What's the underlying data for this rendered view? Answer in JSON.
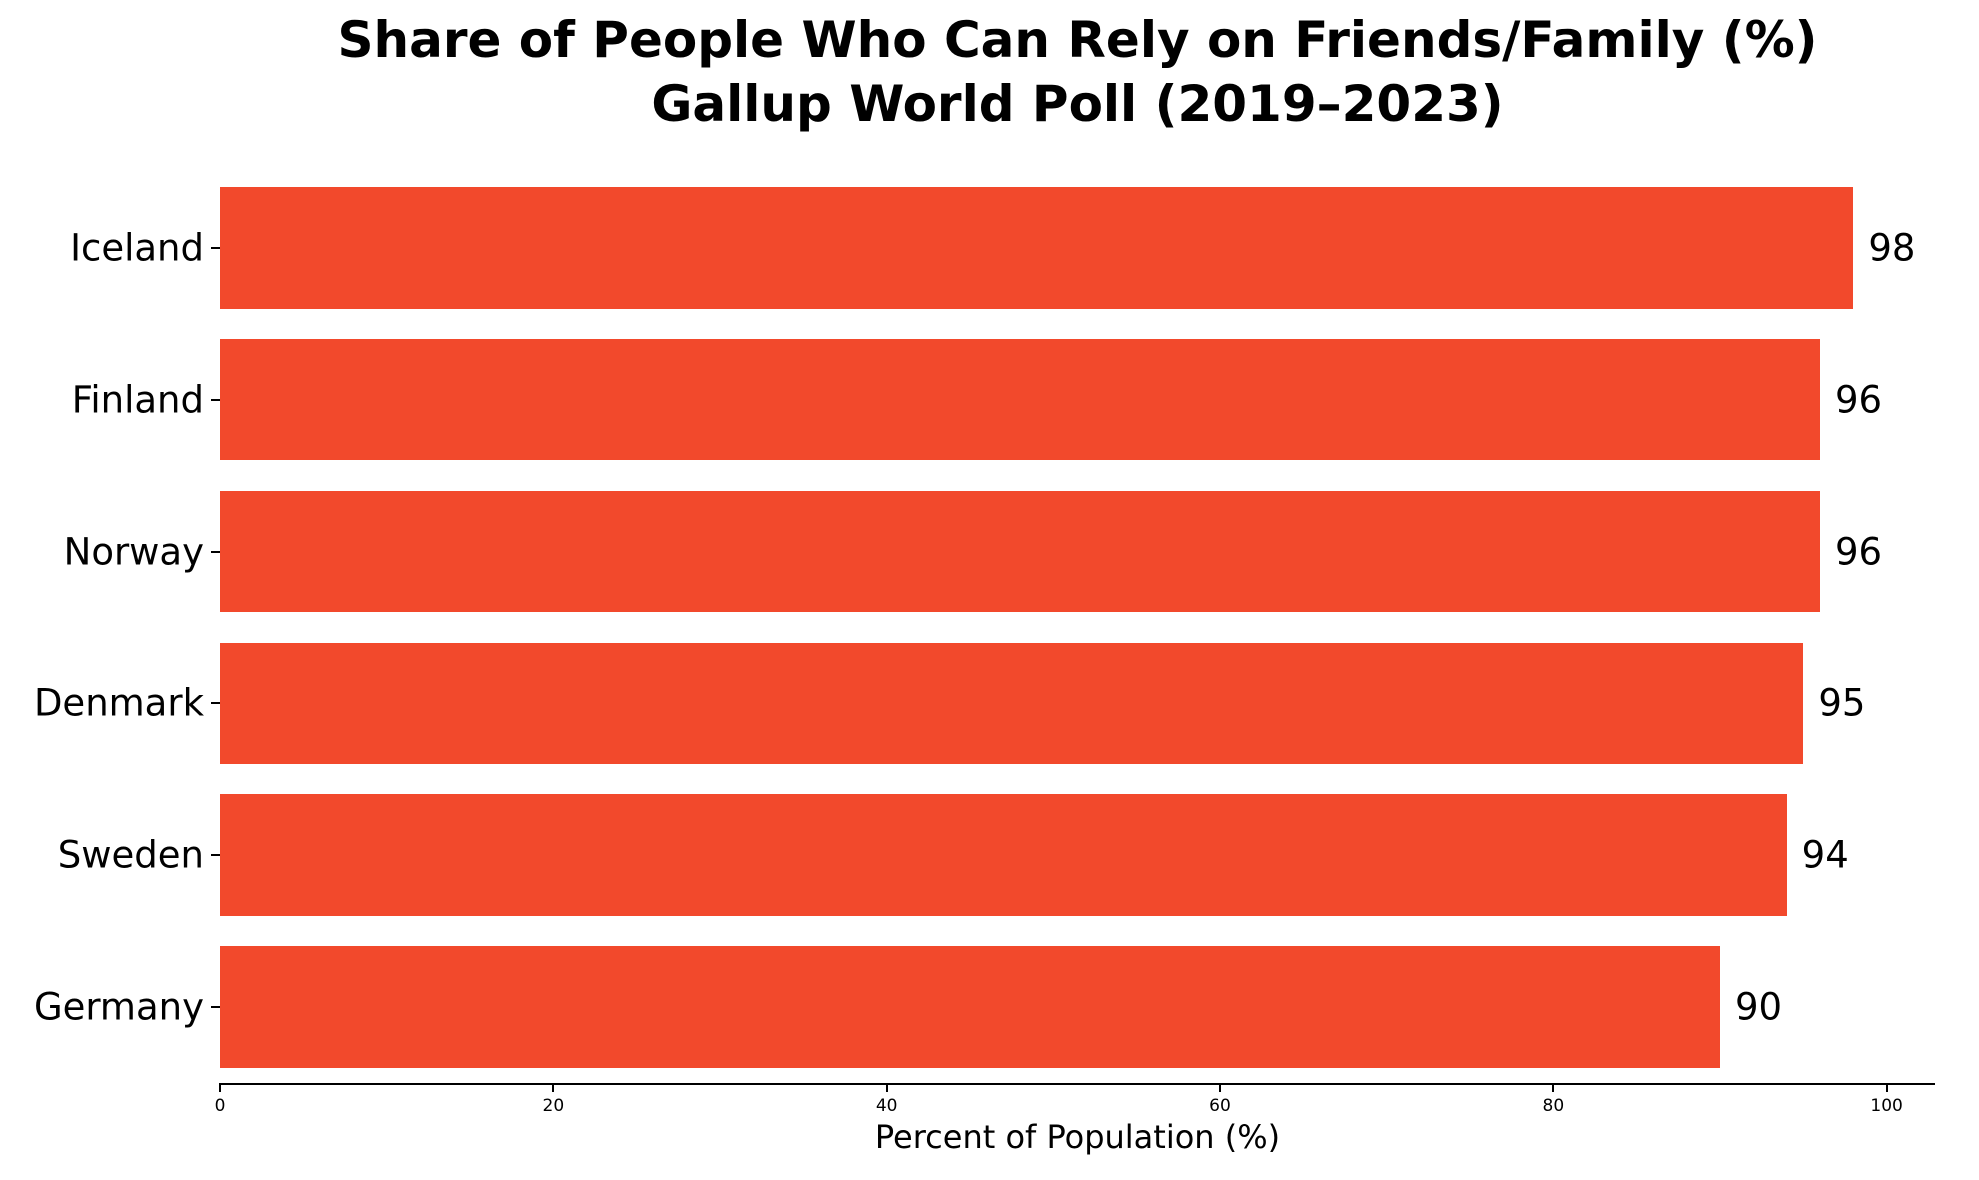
{
  "chart_data": {
    "type": "bar",
    "orientation": "horizontal",
    "title_line1": "Share of People Who Can Rely on Friends/Family (%)",
    "title_line2": "Gallup World Poll (2019–2023)",
    "categories": [
      "Iceland",
      "Finland",
      "Norway",
      "Denmark",
      "Sweden",
      "Germany"
    ],
    "values": [
      98,
      96,
      96,
      95,
      94,
      90
    ],
    "value_labels": [
      "98",
      "96",
      "96",
      "95",
      "94",
      "90"
    ],
    "xlabel": "Percent of Population (%)",
    "xlim": [
      0,
      102.9
    ],
    "xticks": [
      0,
      20,
      40,
      60,
      80,
      100
    ],
    "xtick_labels": [
      "0",
      "20",
      "40",
      "60",
      "80",
      "100"
    ],
    "bar_color": "#f2492c",
    "text_color": "#000000",
    "background_color": "#ffffff",
    "grid": "off",
    "legend": "none"
  }
}
